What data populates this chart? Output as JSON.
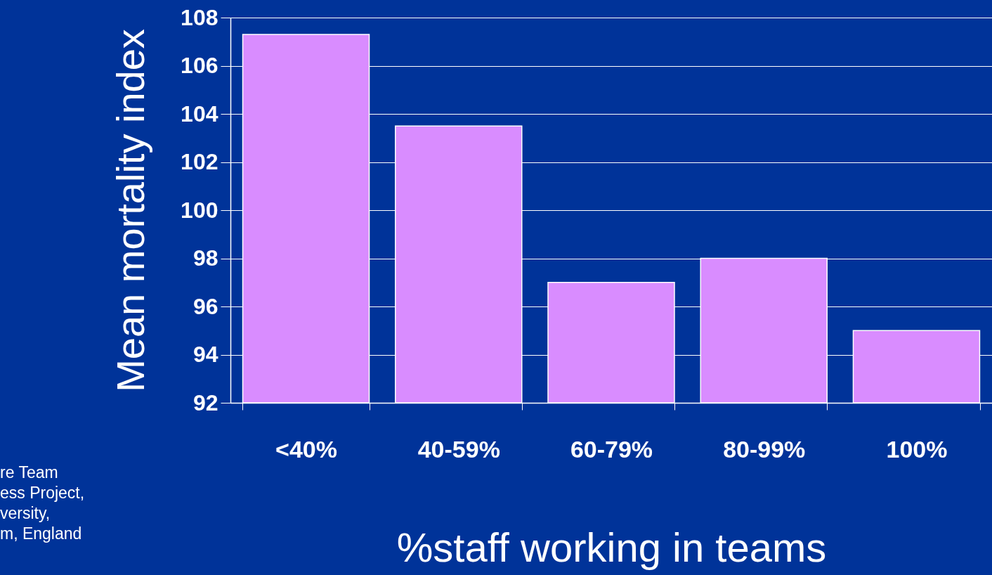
{
  "chart_data": {
    "type": "bar",
    "xlabel": "%staff working in teams",
    "ylabel": "Mean mortality index",
    "categories": [
      "<40%",
      "40-59%",
      "60-79%",
      "80-99%",
      "100%"
    ],
    "values": [
      107.3,
      103.5,
      97,
      98,
      95
    ],
    "color": "#d98cff",
    "ylim": [
      92,
      108
    ],
    "yticks": [
      92,
      94,
      96,
      98,
      100,
      102,
      104,
      106,
      108
    ],
    "grid": "y",
    "annotations": [
      "re Team\ness Project,\nversity,\nm, England"
    ]
  }
}
